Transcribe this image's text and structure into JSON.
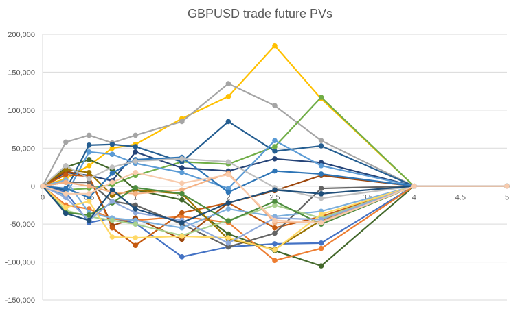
{
  "chart_data": {
    "type": "line",
    "title": "GBPUSD trade future PVs",
    "xlabel": "",
    "ylabel": "",
    "x": [
      0,
      0.25,
      0.5,
      0.75,
      1,
      1.5,
      2,
      2.5,
      3,
      4,
      5
    ],
    "xlim": [
      0,
      5
    ],
    "ylim": [
      -150000,
      200000
    ],
    "x_ticks": [
      0,
      0.5,
      1,
      1.5,
      2,
      2.5,
      3,
      3.5,
      4,
      4.5,
      5
    ],
    "x_tick_labels": [
      "0",
      "0.5",
      "1",
      "1.5",
      "2",
      "2.5",
      "3",
      "3.5",
      "4",
      "4.5",
      "5"
    ],
    "y_ticks": [
      -150000,
      -100000,
      -50000,
      0,
      50000,
      100000,
      150000,
      200000
    ],
    "y_tick_labels": [
      "-150,000",
      "-100,000",
      "-50,000",
      "0",
      "50,000",
      "100,000",
      "150,000",
      "200,000"
    ],
    "gridlines": "horizontal",
    "legend": "none",
    "series": [
      {
        "color": "#FFC000",
        "values": [
          0,
          10000,
          27000,
          50000,
          55000,
          89000,
          118000,
          185000,
          115000,
          0,
          0
        ]
      },
      {
        "color": "#A5A5A5",
        "values": [
          0,
          58000,
          67000,
          57000,
          67000,
          85000,
          135000,
          106000,
          60000,
          0,
          0
        ]
      },
      {
        "color": "#70AD47",
        "values": [
          0,
          -5000,
          -3000,
          2000,
          14000,
          32000,
          29000,
          52000,
          117000,
          0,
          0
        ]
      },
      {
        "color": "#4472C4",
        "values": [
          0,
          -8000,
          -48000,
          -42000,
          -49000,
          -93000,
          -80000,
          -76000,
          -75000,
          0,
          0
        ]
      },
      {
        "color": "#255E91",
        "values": [
          0,
          -5000,
          54000,
          55000,
          52000,
          32000,
          85000,
          46000,
          53000,
          0,
          0
        ]
      },
      {
        "color": "#264478",
        "values": [
          0,
          18000,
          14000,
          7000,
          45000,
          24000,
          20000,
          36000,
          31000,
          0,
          0
        ]
      },
      {
        "color": "#9E480E",
        "values": [
          0,
          20000,
          12000,
          -52000,
          -42000,
          -70000,
          -22000,
          -6000,
          14000,
          0,
          0
        ]
      },
      {
        "color": "#43682B",
        "values": [
          0,
          25000,
          35000,
          22000,
          -5000,
          -18000,
          -63000,
          -85000,
          -105000,
          0,
          0
        ]
      },
      {
        "color": "#ED7D31",
        "values": [
          0,
          -25000,
          -30000,
          -43000,
          -45000,
          -40000,
          -48000,
          -98000,
          -82000,
          0,
          0
        ]
      },
      {
        "color": "#5B9BD5",
        "values": [
          0,
          -12000,
          45000,
          42000,
          30000,
          18000,
          -3000,
          60000,
          27000,
          0,
          0
        ]
      },
      {
        "color": "#C55A11",
        "values": [
          0,
          15000,
          13000,
          -55000,
          -78000,
          -35000,
          -22000,
          -55000,
          -40000,
          0,
          0
        ]
      },
      {
        "color": "#636363",
        "values": [
          0,
          5000,
          5000,
          -20000,
          -25000,
          -50000,
          -80000,
          -62000,
          -3000,
          0,
          0
        ]
      },
      {
        "color": "#7CAFDD",
        "values": [
          0,
          8000,
          -35000,
          -42000,
          -45000,
          -55000,
          -30000,
          -40000,
          -33000,
          0,
          0
        ]
      },
      {
        "color": "#997300",
        "values": [
          0,
          22000,
          18000,
          -12000,
          -5000,
          -10000,
          -70000,
          -83000,
          -45000,
          0,
          0
        ]
      },
      {
        "color": "#F4B183",
        "values": [
          0,
          5000,
          0,
          -8000,
          -10000,
          -5000,
          17000,
          -48000,
          -47000,
          0,
          0
        ]
      },
      {
        "color": "#A9D18E",
        "values": [
          0,
          -32000,
          -40000,
          -45000,
          -50000,
          -65000,
          -45000,
          -25000,
          -42000,
          0,
          0
        ]
      },
      {
        "color": "#4D8C3F",
        "values": [
          0,
          -35000,
          -38000,
          -22000,
          -2000,
          -10000,
          -46000,
          -20000,
          -50000,
          0,
          0
        ]
      },
      {
        "color": "#2E75B6",
        "values": [
          0,
          -3000,
          -15000,
          17000,
          35000,
          38000,
          -8000,
          20000,
          16000,
          0,
          0
        ]
      },
      {
        "color": "#FFD966",
        "values": [
          0,
          -28000,
          -20000,
          -67000,
          -68000,
          -66000,
          -68000,
          -84000,
          -37000,
          0,
          0
        ]
      },
      {
        "color": "#8FAADC",
        "values": [
          0,
          -15000,
          -45000,
          -20000,
          -35000,
          -45000,
          -75000,
          -42000,
          -44000,
          0,
          0
        ]
      },
      {
        "color": "#BFBFBF",
        "values": [
          0,
          27000,
          10000,
          25000,
          33000,
          36000,
          32000,
          -2000,
          -16000,
          0,
          0
        ]
      },
      {
        "color": "#1F4E79",
        "values": [
          0,
          -36000,
          -45000,
          -5000,
          -30000,
          -48000,
          -22000,
          -5000,
          -10000,
          0,
          0
        ]
      },
      {
        "color": "#F8CBAD",
        "values": [
          0,
          -10000,
          -10000,
          5000,
          18000,
          4000,
          15000,
          -45000,
          -48000,
          0,
          0
        ]
      }
    ]
  }
}
